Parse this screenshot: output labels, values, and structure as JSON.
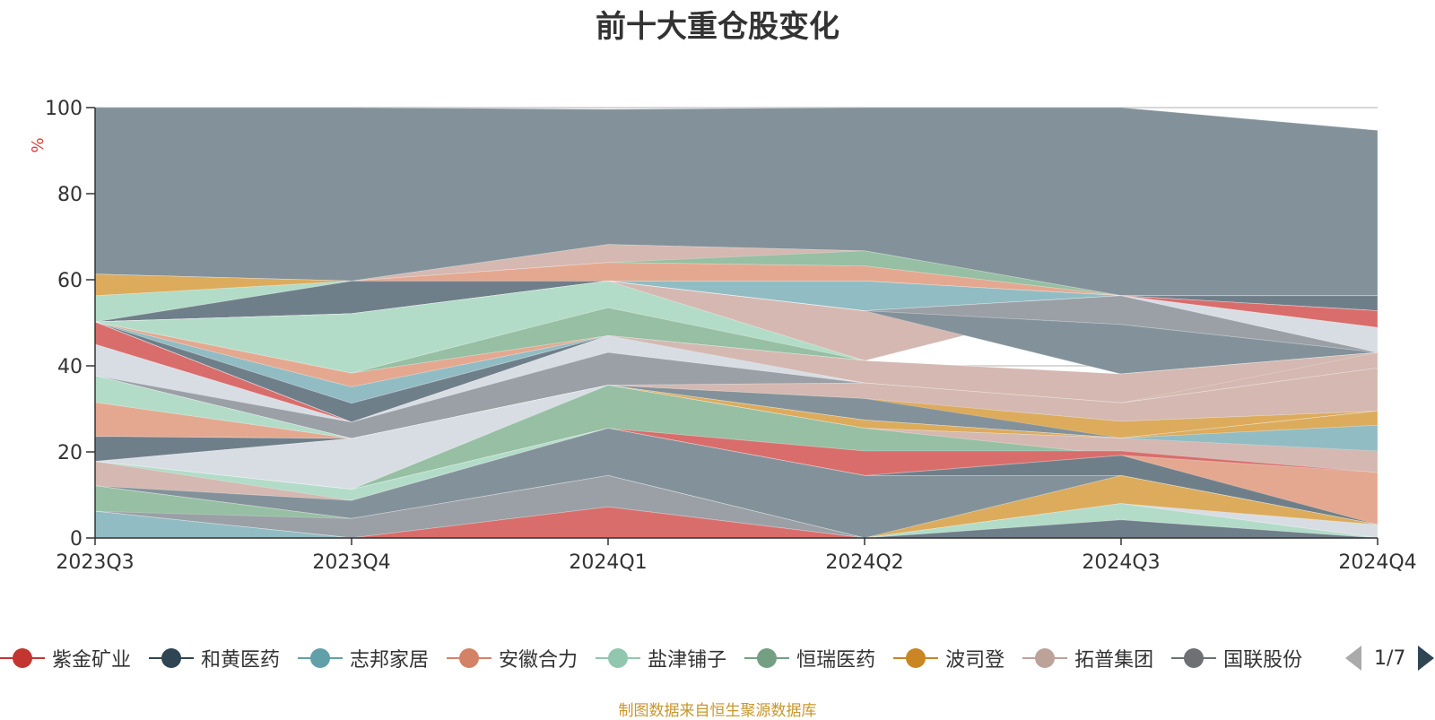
{
  "chart_data": {
    "type": "area",
    "title": "前十大重仓股变化",
    "ylabel": "%",
    "ylim": [
      0,
      100
    ],
    "yticks": [
      0,
      20,
      40,
      60,
      80,
      100
    ],
    "grid": true,
    "legend_position": "bottom",
    "categories": [
      "2023Q3",
      "2023Q4",
      "2024Q1",
      "2024Q2",
      "2024Q3",
      "2024Q4"
    ],
    "layers": [
      {
        "color": "#83929a",
        "lower": [
          61.3,
          59.7,
          68.2,
          66.7,
          56.3,
          56.3
        ],
        "upper": [
          100,
          100,
          99.6,
          100,
          100,
          94.7
        ]
      },
      {
        "color": "#d4b8b1",
        "lower": [
          61.3,
          59.7,
          64.0,
          63.6,
          56.3,
          56.3
        ],
        "upper": [
          61.3,
          59.7,
          68.2,
          66.7,
          56.3,
          56.3
        ]
      },
      {
        "color": "#96bfa3",
        "lower": [
          61.3,
          59.7,
          64.0,
          63.2,
          56.3,
          56.3
        ],
        "upper": [
          61.3,
          59.7,
          64.0,
          66.7,
          56.3,
          56.3
        ]
      },
      {
        "color": "#e4a890",
        "lower": [
          61.3,
          59.7,
          59.7,
          59.7,
          56.3,
          56.3
        ],
        "upper": [
          61.3,
          59.7,
          64.0,
          63.2,
          56.3,
          56.3
        ]
      },
      {
        "color": "#dcab5c",
        "lower": [
          56.3,
          59.7,
          59.7,
          59.7,
          56.3,
          56.3
        ],
        "upper": [
          61.3,
          59.7,
          59.7,
          59.7,
          56.3,
          56.3
        ]
      },
      {
        "color": "#b2dcc8",
        "lower": [
          50.2,
          59.7,
          59.7,
          59.7,
          56.3,
          56.3
        ],
        "upper": [
          56.3,
          59.7,
          59.7,
          59.7,
          56.3,
          56.3
        ]
      },
      {
        "color": "#6f7f8a",
        "lower": [
          50.2,
          52.1,
          59.7,
          52.8,
          56.3,
          52.8
        ],
        "upper": [
          50.2,
          59.7,
          59.7,
          52.8,
          56.3,
          56.3
        ]
      },
      {
        "color": "#dcab5c",
        "lower": [
          50.2,
          52.1,
          47.0,
          41.2,
          56.3,
          52.8
        ],
        "upper": [
          50.2,
          52.1,
          59.7,
          41.2,
          56.3,
          52.8
        ]
      },
      {
        "color": "#91bcc3",
        "lower": [
          50.2,
          52.1,
          59.7,
          52.8,
          56.3,
          52.8
        ],
        "upper": [
          50.2,
          52.1,
          59.7,
          59.7,
          56.3,
          52.8
        ]
      },
      {
        "color": "#d4b8b1",
        "lower": [
          50.2,
          52.1,
          59.7,
          41.2,
          56.3,
          52.8
        ],
        "upper": [
          50.2,
          52.1,
          59.7,
          52.8,
          56.3,
          52.8
        ]
      },
      {
        "color": "#d96d6b",
        "lower": [
          50.2,
          52.1,
          59.7,
          52.8,
          56.3,
          48.9
        ],
        "upper": [
          50.2,
          52.1,
          59.7,
          52.8,
          56.3,
          52.8
        ]
      },
      {
        "color": "#d8dde4",
        "lower": [
          50.2,
          52.1,
          59.7,
          52.8,
          56.3,
          43.1
        ],
        "upper": [
          50.2,
          52.1,
          59.7,
          52.8,
          56.3,
          48.9
        ]
      },
      {
        "color": "#9aa0a6",
        "lower": [
          50.2,
          52.1,
          59.7,
          52.8,
          49.6,
          43.1
        ],
        "upper": [
          50.2,
          52.1,
          59.7,
          52.8,
          56.3,
          43.1
        ]
      },
      {
        "color": "#83929a",
        "lower": [
          50.2,
          52.1,
          59.7,
          52.8,
          38.1,
          43.1
        ],
        "upper": [
          50.2,
          52.1,
          59.7,
          52.8,
          49.6,
          43.1
        ]
      },
      {
        "color": "#b2dcc8",
        "lower": [
          50.2,
          38.3,
          53.5,
          41.2,
          38.1,
          43.1
        ],
        "upper": [
          50.2,
          52.1,
          59.7,
          41.2,
          38.1,
          43.1
        ]
      },
      {
        "color": "#96bfa3",
        "lower": [
          50.2,
          38.3,
          47.0,
          41.2,
          38.1,
          43.1
        ],
        "upper": [
          50.2,
          38.3,
          53.5,
          41.2,
          38.1,
          43.1
        ]
      },
      {
        "color": "#e4a890",
        "lower": [
          50.2,
          35.1,
          47.0,
          41.2,
          38.1,
          43.1
        ],
        "upper": [
          50.2,
          38.3,
          47.0,
          41.2,
          38.1,
          43.1
        ]
      },
      {
        "color": "#91bcc3",
        "lower": [
          50.2,
          31.3,
          47.0,
          41.2,
          38.1,
          43.1
        ],
        "upper": [
          50.2,
          35.1,
          47.0,
          41.2,
          38.1,
          43.1
        ]
      },
      {
        "color": "#6f7f8a",
        "lower": [
          50.2,
          26.9,
          47.0,
          41.2,
          31.4,
          43.1
        ],
        "upper": [
          50.2,
          31.3,
          47.0,
          41.2,
          31.4,
          43.1
        ]
      },
      {
        "color": "#d96d6b",
        "lower": [
          45.0,
          26.9,
          47.0,
          41.2,
          31.4,
          43.1
        ],
        "upper": [
          50.2,
          26.9,
          47.0,
          41.2,
          31.4,
          43.1
        ]
      },
      {
        "color": "#6f7f8a",
        "lower": [
          50.2,
          26.9,
          43.1,
          37.0,
          31.4,
          43.1
        ],
        "upper": [
          50.2,
          26.9,
          47.0,
          41.2,
          31.4,
          43.1
        ]
      },
      {
        "color": "#d4b8b1",
        "lower": [
          50.2,
          26.9,
          47.0,
          36.0,
          31.4,
          39.5
        ],
        "upper": [
          50.2,
          26.9,
          47.0,
          41.2,
          38.1,
          43.1
        ]
      },
      {
        "color": "#d8dde4",
        "lower": [
          37.7,
          23.1,
          43.1,
          36.0,
          31.4,
          39.5
        ],
        "upper": [
          45.0,
          26.9,
          47.0,
          36.0,
          31.4,
          39.5
        ]
      },
      {
        "color": "#9aa0a6",
        "lower": [
          37.7,
          23.1,
          35.5,
          36.0,
          31.4,
          43.1
        ],
        "upper": [
          37.7,
          26.9,
          43.1,
          36.0,
          31.4,
          43.1
        ]
      },
      {
        "color": "#d96d6b",
        "lower": [
          37.7,
          23.1,
          35.5,
          32.4,
          23.2,
          39.5
        ],
        "upper": [
          37.7,
          23.1,
          35.5,
          36.0,
          23.2,
          39.5
        ]
      },
      {
        "color": "#d4b8b1",
        "lower": [
          37.7,
          23.1,
          35.5,
          32.4,
          27.1,
          29.5
        ],
        "upper": [
          37.7,
          23.1,
          35.5,
          36.0,
          31.4,
          39.5
        ]
      },
      {
        "color": "#dcab5c",
        "lower": [
          37.7,
          23.1,
          35.5,
          27.4,
          23.2,
          29.5
        ],
        "upper": [
          37.7,
          23.1,
          35.5,
          32.4,
          27.1,
          29.5
        ]
      },
      {
        "color": "#83929a",
        "lower": [
          37.7,
          23.1,
          35.5,
          27.4,
          23.2,
          29.5
        ],
        "upper": [
          37.7,
          23.1,
          35.5,
          32.4,
          23.2,
          29.5
        ]
      },
      {
        "color": "#b2dcc8",
        "lower": [
          31.5,
          23.1,
          35.5,
          27.4,
          23.2,
          29.5
        ],
        "upper": [
          37.7,
          23.1,
          35.5,
          27.4,
          23.2,
          29.5
        ]
      },
      {
        "color": "#96bfa3",
        "lower": [
          23.6,
          23.1,
          35.5,
          27.4,
          23.2,
          26.2
        ],
        "upper": [
          23.6,
          23.1,
          35.5,
          27.4,
          23.2,
          29.5
        ]
      },
      {
        "color": "#e4a890",
        "lower": [
          23.6,
          23.1,
          35.5,
          27.4,
          23.2,
          23.2
        ],
        "upper": [
          31.5,
          23.1,
          35.5,
          27.4,
          23.2,
          23.2
        ]
      },
      {
        "color": "#dcab5c",
        "lower": [
          23.6,
          23.1,
          35.5,
          25.5,
          23.2,
          26.2
        ],
        "upper": [
          23.6,
          23.1,
          35.5,
          27.4,
          23.2,
          29.5
        ]
      },
      {
        "color": "#6f7f8a",
        "lower": [
          17.8,
          23.1,
          35.5,
          25.5,
          23.2,
          20.2
        ],
        "upper": [
          23.6,
          23.1,
          35.5,
          25.5,
          23.2,
          20.2
        ]
      },
      {
        "color": "#91bcc3",
        "lower": [
          17.8,
          23.1,
          25.5,
          20.2,
          20.2,
          20.2
        ],
        "upper": [
          17.8,
          23.1,
          35.5,
          25.5,
          23.2,
          26.2
        ]
      },
      {
        "color": "#d4b8b1",
        "lower": [
          17.8,
          23.1,
          35.5,
          25.5,
          18.5,
          15.2
        ],
        "upper": [
          17.8,
          23.1,
          35.5,
          25.5,
          23.2,
          20.2
        ]
      },
      {
        "color": "#d8dde4",
        "lower": [
          17.8,
          11.3,
          35.5,
          25.5,
          19.2,
          15.2
        ],
        "upper": [
          17.8,
          23.1,
          35.5,
          25.5,
          19.2,
          15.2
        ]
      },
      {
        "color": "#96bfa3",
        "lower": [
          17.8,
          11.3,
          25.5,
          20.2,
          19.2,
          15.2
        ],
        "upper": [
          17.8,
          11.3,
          35.5,
          25.5,
          19.2,
          15.2
        ]
      },
      {
        "color": "#d96d6b",
        "lower": [
          17.8,
          11.3,
          25.5,
          14.5,
          14.5,
          15.2
        ],
        "upper": [
          17.8,
          11.3,
          25.5,
          20.2,
          20.2,
          15.2
        ]
      },
      {
        "color": "#6f7f8a",
        "lower": [
          17.8,
          11.3,
          25.5,
          14.5,
          14.5,
          3.1
        ],
        "upper": [
          17.8,
          11.3,
          25.5,
          14.5,
          19.2,
          15.2
        ]
      },
      {
        "color": "#e4a890",
        "lower": [
          17.8,
          11.3,
          25.5,
          14.5,
          19.2,
          3.1
        ],
        "upper": [
          17.8,
          11.3,
          25.5,
          14.5,
          19.2,
          15.2
        ]
      },
      {
        "color": "#b2dcc8",
        "lower": [
          12.1,
          8.7,
          25.5,
          14.5,
          14.5,
          3.1
        ],
        "upper": [
          17.8,
          11.3,
          25.5,
          14.5,
          14.5,
          3.1
        ]
      },
      {
        "color": "#d4b8b1",
        "lower": [
          12.1,
          4.5,
          25.5,
          14.5,
          14.5,
          3.1
        ],
        "upper": [
          17.8,
          8.7,
          25.5,
          14.5,
          14.5,
          3.1
        ]
      },
      {
        "color": "#9aa0a6",
        "lower": [
          12.1,
          4.5,
          14.5,
          14.5,
          14.5,
          3.1
        ],
        "upper": [
          12.1,
          8.7,
          25.5,
          14.5,
          14.5,
          3.1
        ]
      },
      {
        "color": "#83929a",
        "lower": [
          12.1,
          4.5,
          14.5,
          0,
          14.5,
          3.1
        ],
        "upper": [
          12.1,
          8.7,
          25.5,
          14.5,
          14.5,
          3.1
        ]
      },
      {
        "color": "#dcab5c",
        "lower": [
          12.1,
          4.5,
          14.5,
          0,
          8.0,
          0
        ],
        "upper": [
          12.1,
          4.5,
          14.5,
          0,
          14.5,
          3.1
        ]
      },
      {
        "color": "#d8dde4",
        "lower": [
          12.1,
          4.5,
          14.5,
          0,
          8.0,
          0
        ],
        "upper": [
          12.1,
          4.5,
          14.5,
          0,
          8.0,
          3.1
        ]
      },
      {
        "color": "#e4a890",
        "lower": [
          6.2,
          0,
          14.5,
          0,
          8.0,
          0
        ],
        "upper": [
          12.1,
          4.5,
          14.5,
          0,
          8.0,
          0
        ]
      },
      {
        "color": "#96bfa3",
        "lower": [
          6.2,
          0,
          7.2,
          0,
          8.0,
          0
        ],
        "upper": [
          12.1,
          4.5,
          7.2,
          0,
          8.0,
          0
        ]
      },
      {
        "color": "#9aa0a6",
        "lower": [
          6.2,
          0,
          7.2,
          0,
          4.2,
          0
        ],
        "upper": [
          6.2,
          4.5,
          14.5,
          0,
          8.0,
          0
        ]
      },
      {
        "color": "#b2dcc8",
        "lower": [
          6.2,
          0,
          7.2,
          0,
          4.2,
          0
        ],
        "upper": [
          6.2,
          0,
          7.2,
          0,
          8.0,
          0
        ]
      },
      {
        "color": "#6f7f8a",
        "lower": [
          6.2,
          0,
          0,
          0,
          0,
          0
        ],
        "upper": [
          6.2,
          0,
          7.2,
          0,
          4.2,
          0
        ]
      },
      {
        "color": "#d96d6b",
        "lower": [
          6.2,
          0,
          0,
          0,
          0,
          0
        ],
        "upper": [
          6.2,
          0,
          7.2,
          0,
          0,
          0
        ]
      },
      {
        "color": "#91bcc3",
        "lower": [
          0,
          0,
          0,
          0,
          0,
          0
        ],
        "upper": [
          6.2,
          0,
          0,
          0,
          0,
          0
        ]
      }
    ],
    "legend": [
      {
        "name": "紫金矿业",
        "color": "#c23531"
      },
      {
        "name": "和黄医药",
        "color": "#2f4554"
      },
      {
        "name": "志邦家居",
        "color": "#61a0a8"
      },
      {
        "name": "安徽合力",
        "color": "#d48265"
      },
      {
        "name": "盐津铺子",
        "color": "#91c7ae"
      },
      {
        "name": "恒瑞医药",
        "color": "#749f83"
      },
      {
        "name": "波司登",
        "color": "#ca8622"
      },
      {
        "name": "拓普集团",
        "color": "#bda29a"
      },
      {
        "name": "国联股份",
        "color": "#6e7074"
      }
    ],
    "legend_page": "1/7",
    "source": "制图数据来自恒生聚源数据库"
  }
}
